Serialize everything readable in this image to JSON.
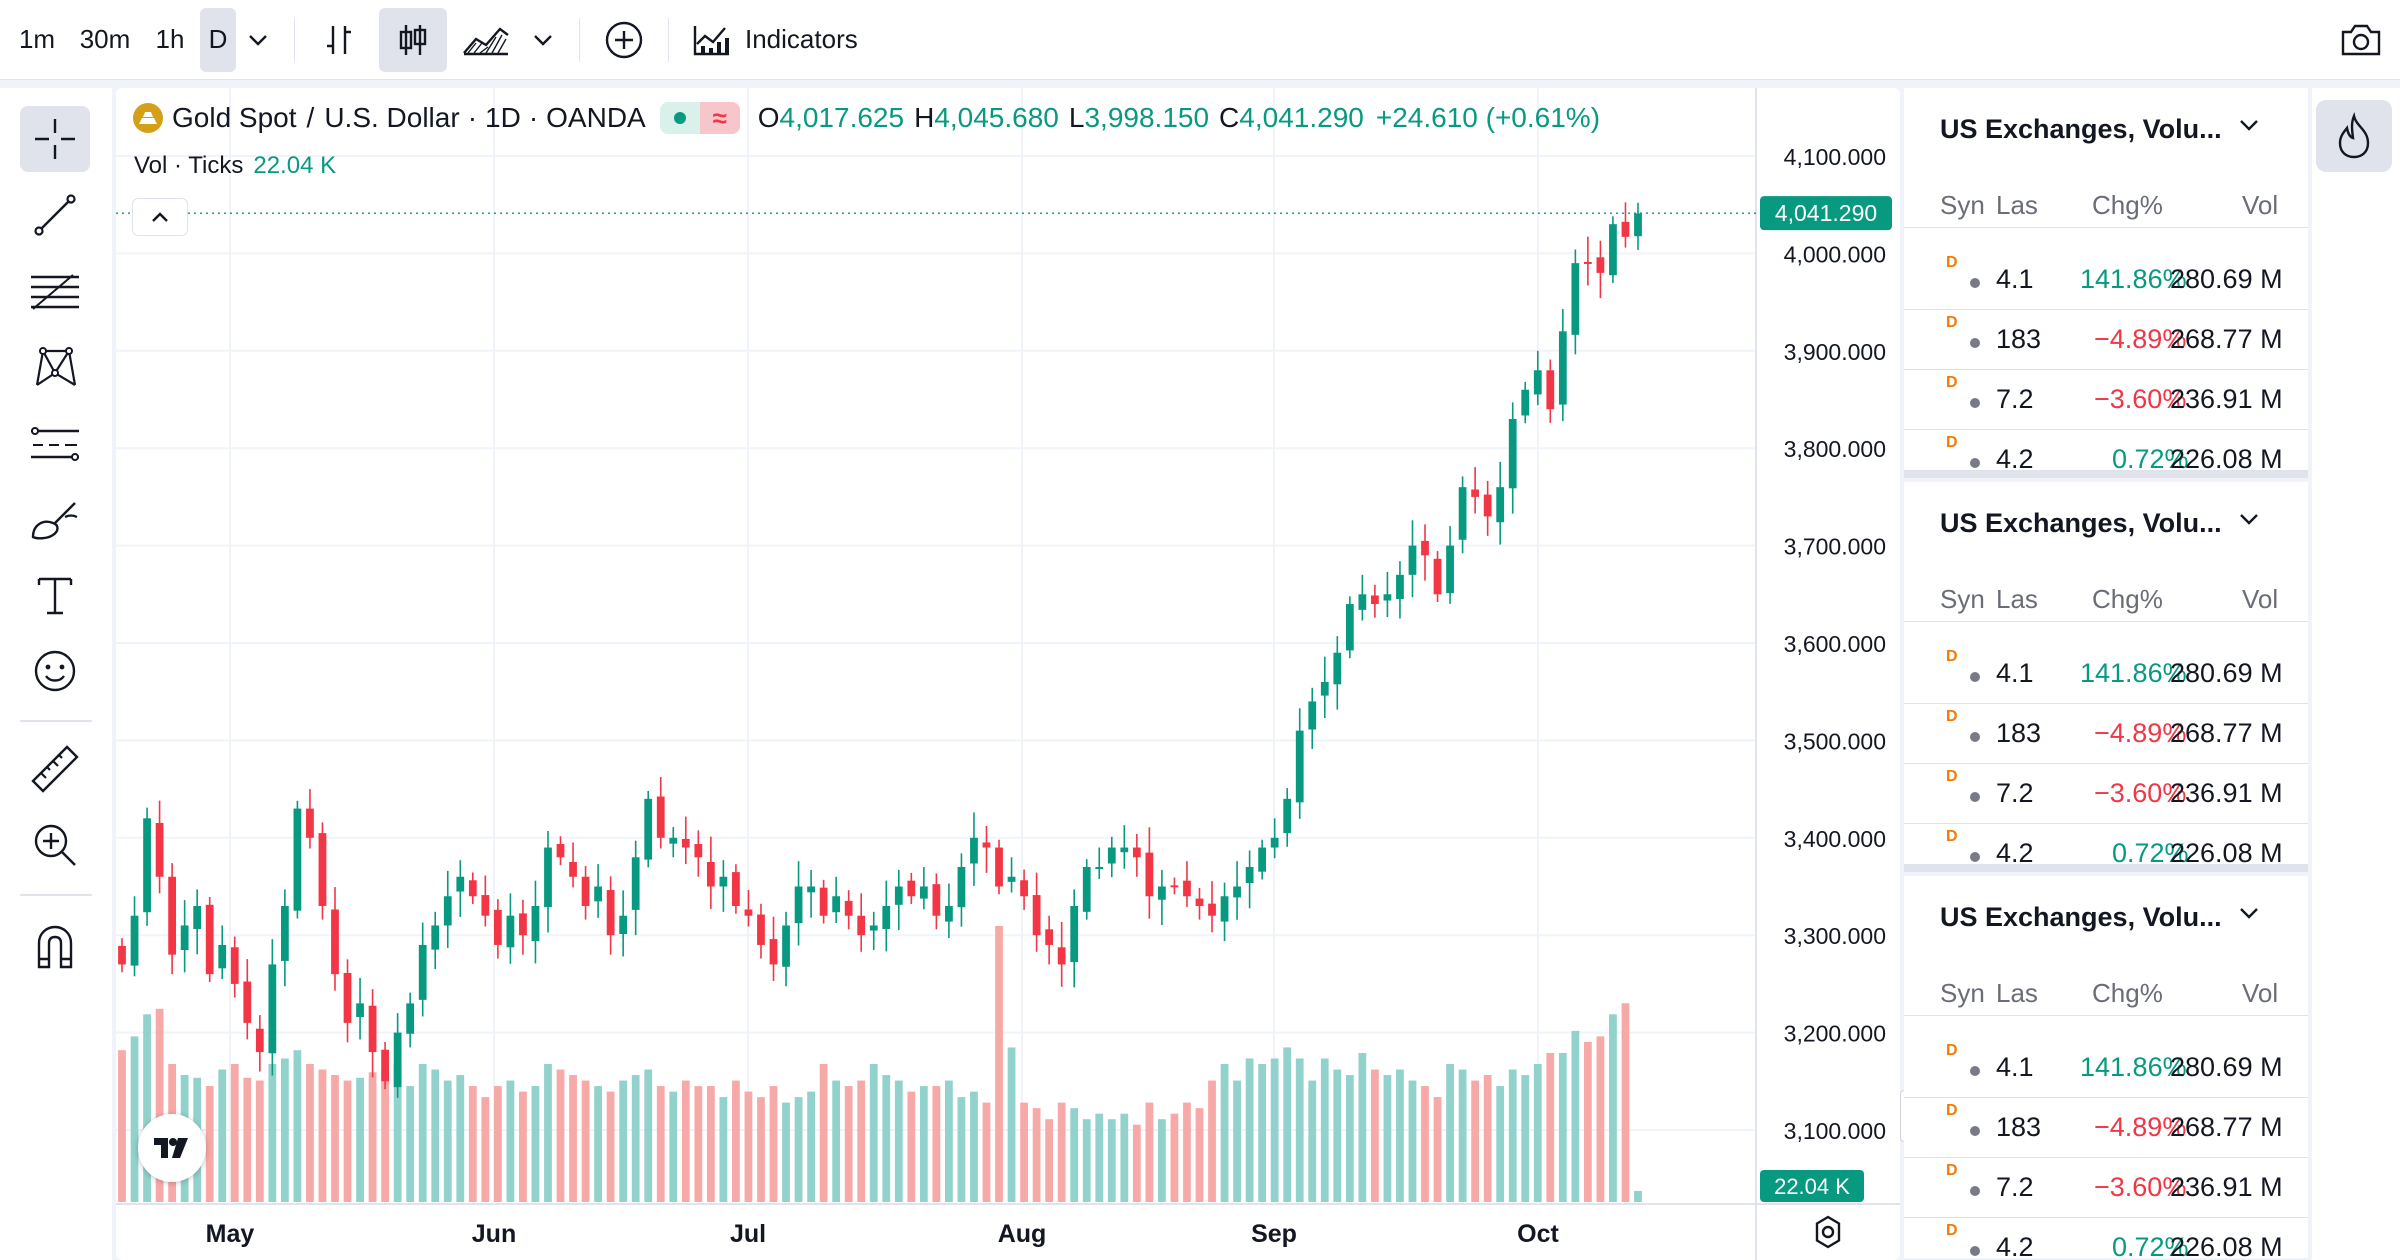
{
  "toolbar": {
    "intervals": [
      "1m",
      "30m",
      "1h",
      "D"
    ],
    "active_interval": "D",
    "indicators_label": "Indicators"
  },
  "legend": {
    "symbol": "Gold Spot",
    "separator": "/",
    "quote": "U.S. Dollar",
    "interval": "1D",
    "exchange": "OANDA",
    "open_label": "O",
    "open": "4,017.625",
    "high_label": "H",
    "high": "4,045.680",
    "low_label": "L",
    "low": "3,998.150",
    "close_label": "C",
    "close": "4,041.290",
    "change": "+24.610 (+0.61%)"
  },
  "volume_legend": {
    "label": "Vol · Ticks",
    "value": "22.04 K"
  },
  "price_axis": {
    "ticks": [
      "4,100.000",
      "4,000.000",
      "3,900.000",
      "3,800.000",
      "3,700.000",
      "3,600.000",
      "3,500.000",
      "3,400.000",
      "3,300.000",
      "3,200.000",
      "3,100.000"
    ],
    "last_price_label": "4,041.290",
    "volume_label": "22.04 K"
  },
  "time_axis": {
    "ticks": [
      "May",
      "Jun",
      "Jul",
      "Aug",
      "Sep",
      "Oct"
    ]
  },
  "colors": {
    "up": "#089981",
    "down": "#f23645",
    "up_volume": "#92d2cc",
    "down_volume": "#f7a9a7",
    "accent": "#2962ff"
  },
  "left_tools": [
    "crosshair-icon",
    "trend-line-icon",
    "fib-icon",
    "pattern-icon",
    "prediction-icon",
    "brush-icon",
    "text-icon",
    "emoji-icon",
    "ruler-icon",
    "zoom-icon",
    "magnet-icon"
  ],
  "watchlists": [
    {
      "title": "US Exchanges, Volu...",
      "headers": [
        "Syn",
        "Las",
        "Chg%",
        "Vol"
      ],
      "rows": [
        {
          "badge": "D",
          "last": "4.1",
          "chg": "141.86%",
          "vol": "280.69 M",
          "dir": "pos"
        },
        {
          "badge": "D",
          "last": "183",
          "chg": "−4.89%",
          "vol": "268.77 M",
          "dir": "neg"
        },
        {
          "badge": "D",
          "last": "7.2",
          "chg": "−3.60%",
          "vol": "236.91 M",
          "dir": "neg"
        },
        {
          "badge": "D",
          "last": "4.2",
          "chg": "0.72%",
          "vol": "226.08 M",
          "dir": "pos"
        }
      ]
    },
    {
      "title": "US Exchanges, Volu...",
      "headers": [
        "Syn",
        "Las",
        "Chg%",
        "Vol"
      ],
      "rows": [
        {
          "badge": "D",
          "last": "4.1",
          "chg": "141.86%",
          "vol": "280.69 M",
          "dir": "pos"
        },
        {
          "badge": "D",
          "last": "183",
          "chg": "−4.89%",
          "vol": "268.77 M",
          "dir": "neg"
        },
        {
          "badge": "D",
          "last": "7.2",
          "chg": "−3.60%",
          "vol": "236.91 M",
          "dir": "neg"
        },
        {
          "badge": "D",
          "last": "4.2",
          "chg": "0.72%",
          "vol": "226.08 M",
          "dir": "pos"
        }
      ]
    },
    {
      "title": "US Exchanges, Volu...",
      "headers": [
        "Syn",
        "Las",
        "Chg%",
        "Vol"
      ],
      "rows": [
        {
          "badge": "D",
          "last": "4.1",
          "chg": "141.86%",
          "vol": "280.69 M",
          "dir": "pos"
        },
        {
          "badge": "D",
          "last": "183",
          "chg": "−4.89%",
          "vol": "268.77 M",
          "dir": "neg"
        },
        {
          "badge": "D",
          "last": "7.2",
          "chg": "−3.60%",
          "vol": "236.91 M",
          "dir": "neg"
        },
        {
          "badge": "D",
          "last": "4.2",
          "chg": "0.72%",
          "vol": "226.08 M",
          "dir": "pos"
        }
      ]
    }
  ],
  "chart_data": {
    "type": "candlestick",
    "x_ticks": [
      "May",
      "Jun",
      "Jul",
      "Aug",
      "Sep",
      "Oct"
    ],
    "y_range": [
      3050,
      4150
    ],
    "last_price": 4041.29,
    "closes": [
      3270,
      3320,
      3420,
      3360,
      3280,
      3310,
      3330,
      3260,
      3290,
      3250,
      3210,
      3180,
      3270,
      3330,
      3430,
      3400,
      3330,
      3260,
      3210,
      3230,
      3180,
      3150,
      3200,
      3230,
      3290,
      3310,
      3340,
      3360,
      3340,
      3320,
      3290,
      3320,
      3300,
      3330,
      3390,
      3380,
      3360,
      3330,
      3350,
      3300,
      3320,
      3380,
      3440,
      3400,
      3400,
      3390,
      3380,
      3350,
      3360,
      3330,
      3320,
      3290,
      3270,
      3310,
      3350,
      3350,
      3320,
      3340,
      3320,
      3300,
      3310,
      3330,
      3350,
      3340,
      3350,
      3320,
      3330,
      3370,
      3400,
      3390,
      3350,
      3360,
      3340,
      3300,
      3290,
      3270,
      3330,
      3370,
      3370,
      3390,
      3390,
      3380,
      3340,
      3350,
      3350,
      3340,
      3330,
      3320,
      3340,
      3350,
      3370,
      3390,
      3400,
      3440,
      3510,
      3540,
      3560,
      3590,
      3640,
      3650,
      3640,
      3650,
      3670,
      3700,
      3690,
      3650,
      3700,
      3760,
      3750,
      3730,
      3760,
      3830,
      3860,
      3880,
      3840,
      3920,
      3990,
      3990,
      3980,
      4030,
      4017,
      4041
    ],
    "volumes_relative": [
      0.55,
      0.6,
      0.68,
      0.7,
      0.5,
      0.46,
      0.45,
      0.42,
      0.48,
      0.5,
      0.45,
      0.44,
      0.5,
      0.52,
      0.55,
      0.5,
      0.48,
      0.46,
      0.44,
      0.45,
      0.47,
      0.48,
      0.5,
      0.42,
      0.5,
      0.48,
      0.44,
      0.46,
      0.42,
      0.38,
      0.42,
      0.44,
      0.4,
      0.42,
      0.5,
      0.48,
      0.46,
      0.44,
      0.42,
      0.4,
      0.44,
      0.46,
      0.48,
      0.42,
      0.4,
      0.44,
      0.42,
      0.42,
      0.38,
      0.44,
      0.4,
      0.38,
      0.42,
      0.36,
      0.38,
      0.4,
      0.5,
      0.44,
      0.42,
      0.44,
      0.5,
      0.46,
      0.44,
      0.4,
      0.42,
      0.42,
      0.44,
      0.38,
      0.4,
      0.36,
      1.0,
      0.56,
      0.36,
      0.34,
      0.3,
      0.36,
      0.34,
      0.3,
      0.32,
      0.3,
      0.32,
      0.28,
      0.36,
      0.3,
      0.32,
      0.36,
      0.34,
      0.44,
      0.5,
      0.44,
      0.52,
      0.5,
      0.52,
      0.56,
      0.52,
      0.44,
      0.52,
      0.48,
      0.46,
      0.54,
      0.48,
      0.46,
      0.48,
      0.44,
      0.42,
      0.38,
      0.5,
      0.48,
      0.44,
      0.46,
      0.42,
      0.48,
      0.46,
      0.5,
      0.54,
      0.54,
      0.62,
      0.58,
      0.6,
      0.68,
      0.72,
      0.04
    ]
  }
}
